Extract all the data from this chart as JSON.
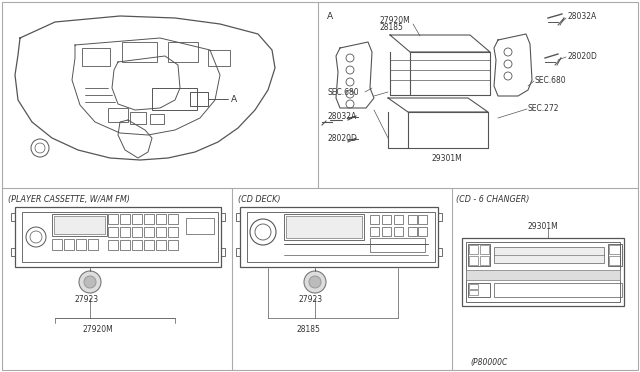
{
  "bg_color": "#ffffff",
  "line_color": "#555555",
  "text_color": "#333333",
  "lc": "#555555",
  "bottom_labels": [
    "(PLAYER CASSETTE, W/AM FM)",
    "(CD DECK)",
    "(CD - 6 CHANGER)"
  ],
  "top_right_parts": {
    "label_A": "A",
    "parts": [
      "27920M",
      "28185",
      "28032A",
      "28020D",
      "SEC.680",
      "SEC.272",
      "SEC.680",
      "28032A",
      "28020D",
      "29301M"
    ]
  },
  "bottom_left_parts": [
    "27923",
    "27920M"
  ],
  "bottom_mid_parts": [
    "27923",
    "28185"
  ],
  "bottom_right_parts": [
    "29301M",
    "(P80000C"
  ]
}
